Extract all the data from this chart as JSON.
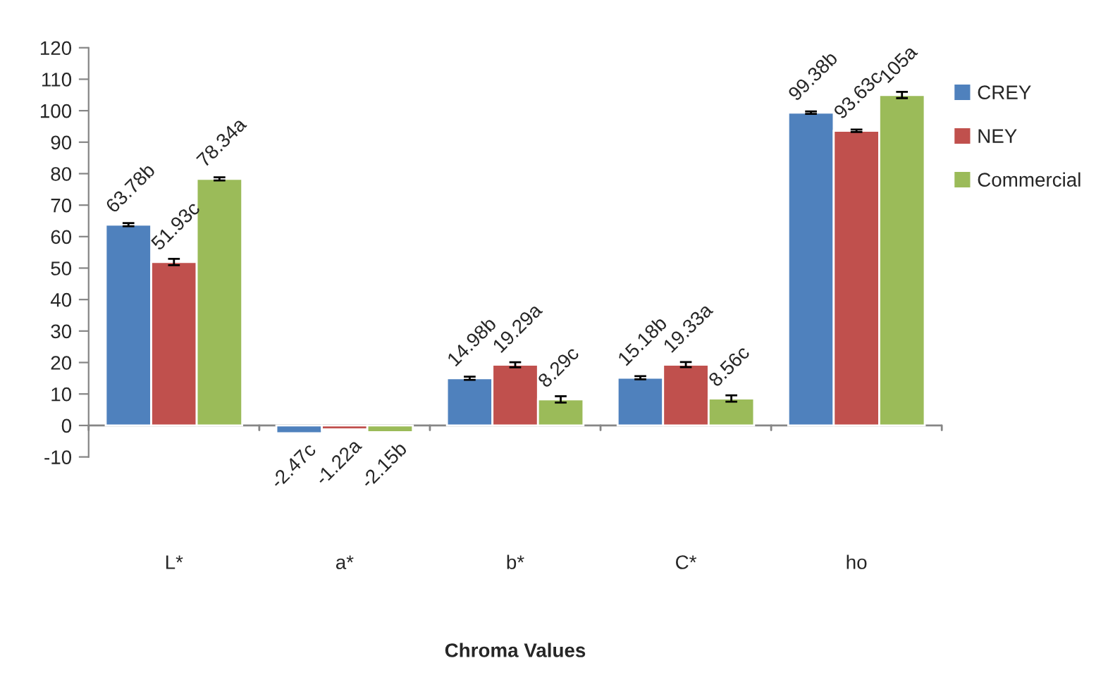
{
  "chart_data": {
    "type": "bar",
    "xlabel": "Chroma Values",
    "categories": [
      "L*",
      "a*",
      "b*",
      "C*",
      "ho"
    ],
    "series": [
      {
        "name": "CREY",
        "color": "#4f81bd",
        "values": [
          63.78,
          -2.47,
          14.98,
          15.18,
          99.38
        ],
        "errors": [
          0.5,
          null,
          0.5,
          0.5,
          0.4
        ],
        "value_labels": [
          "63.78b",
          "-2.47c",
          "14.98b",
          "15.18b",
          "99.38b"
        ]
      },
      {
        "name": "NEY",
        "color": "#c0504d",
        "values": [
          51.93,
          -1.22,
          19.29,
          19.33,
          93.63
        ],
        "errors": [
          1,
          null,
          0.8,
          0.8,
          0.4
        ],
        "value_labels": [
          "51.93c",
          "-1.22a",
          "19.29a",
          "19.33a",
          "93.63c"
        ]
      },
      {
        "name": "Commercial",
        "color": "#9bbb59",
        "values": [
          78.34,
          -2.15,
          8.29,
          8.56,
          105
        ],
        "errors": [
          0.5,
          null,
          1,
          1,
          1
        ],
        "value_labels": [
          "78.34a",
          "-2.15b",
          "8.29c",
          "8.56c",
          "105a"
        ]
      }
    ],
    "ylim": [
      -10,
      120
    ],
    "yticks": [
      -10,
      0,
      10,
      20,
      30,
      40,
      50,
      60,
      70,
      80,
      90,
      100,
      110,
      120
    ],
    "legend": "right"
  }
}
